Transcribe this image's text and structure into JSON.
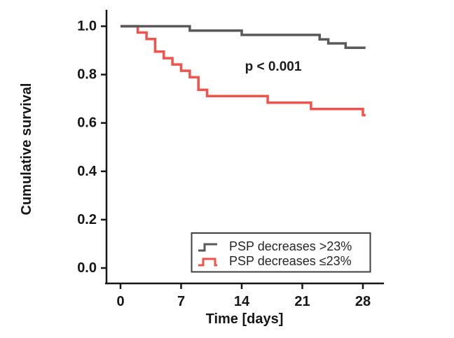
{
  "chart_data": {
    "type": "line",
    "subtype": "kaplan-meier-step",
    "title": "",
    "xlabel": "Time [days]",
    "ylabel": "Cumulative survival",
    "annotation": "p < 0.001",
    "x_ticks": [
      0,
      7,
      14,
      21,
      28
    ],
    "y_ticks": [
      1.0,
      0.8,
      0.6,
      0.4,
      0.2,
      0.0
    ],
    "xlim": [
      0,
      28.3
    ],
    "ylim": [
      0.0,
      1.0
    ],
    "x_end": 28.3,
    "grid": false,
    "legend_position": "lower right",
    "series": [
      {
        "name": "PSP decreases >23%",
        "color": "#595959",
        "start_value": 1.0,
        "drop_days": [
          8,
          14,
          23,
          24,
          26
        ],
        "survival": [
          0.982,
          0.964,
          0.946,
          0.929,
          0.911
        ]
      },
      {
        "name": "PSP decreases ≤23%",
        "color": "#F0534B",
        "start_value": 1.0,
        "drop_days": [
          2,
          3,
          4,
          5,
          6,
          7,
          8,
          9,
          10,
          17,
          22,
          28
        ],
        "survival": [
          0.974,
          0.947,
          0.895,
          0.868,
          0.842,
          0.816,
          0.789,
          0.737,
          0.711,
          0.684,
          0.658,
          0.632
        ]
      }
    ],
    "colors": {
      "axis": "#161616",
      "text": "#161616",
      "legend_border": "#3f3f3f",
      "background": "#ffffff"
    }
  }
}
